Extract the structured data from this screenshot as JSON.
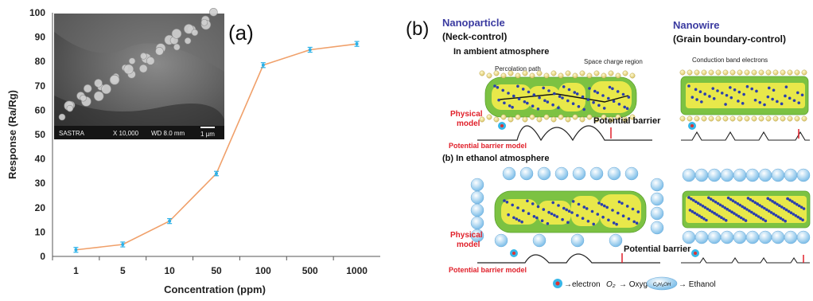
{
  "panel_a": {
    "label": "(a)",
    "chart_data": {
      "type": "line",
      "categories": [
        "1",
        "5",
        "10",
        "50",
        "100",
        "500",
        "1000"
      ],
      "values": [
        2.7,
        4.9,
        14.5,
        34,
        78.5,
        84.8,
        87.2
      ],
      "error": [
        1.0,
        1.0,
        1.0,
        0.9,
        1.0,
        1.0,
        1.0
      ],
      "xlabel": "Concentration (ppm)",
      "ylabel": "Response (Ra/Rg)",
      "ylim": [
        0,
        100
      ],
      "yticks": [
        "0",
        "10",
        "20",
        "30",
        "40",
        "50",
        "60",
        "70",
        "80",
        "90",
        "100"
      ],
      "grid": false,
      "line_color": "#f0a06a",
      "marker_color": "#2ab0e8"
    },
    "inset": {
      "sem_label": "SASTRA",
      "magnification": "X 10,000",
      "working_distance": "WD 8.0 mm",
      "scale_bar": "1 µm"
    }
  },
  "panel_b": {
    "label": "(b)",
    "nanoparticle_title": "Nanoparticle",
    "nanoparticle_subtitle": "(Neck-control)",
    "nanowire_title": "Nanowire",
    "nanowire_subtitle": "(Grain boundary-control)",
    "ambient_heading": "In ambient atmosphere",
    "ethanol_heading": "(b) In ethanol atmosphere",
    "percolation_path": "Percolation path",
    "space_charge_region": "Space charge region",
    "conduction_band_electrons": "Conduction band electrons",
    "physical_model_line1": "Physical",
    "physical_model_line2": "model",
    "potential_barrier": "Potential barrier",
    "potential_barrier_model": "Potential barrier model",
    "legend_electron": "→electron",
    "legend_oxygen_symbol": "O₂",
    "legend_oxygen": "→ Oxygen",
    "legend_ethanol_symbol": "C₂H₅OH",
    "legend_ethanol": "→ Ethanol",
    "title_color": "#3a3aa0",
    "model_color": "#e0202a",
    "grain_green": "#7cc242",
    "grain_yellow": "#e8e84a",
    "ethanol_blue": "#8ec8ec"
  }
}
